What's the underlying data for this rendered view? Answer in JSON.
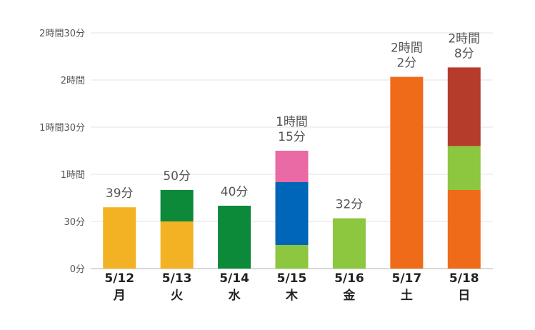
{
  "chart_data": {
    "type": "bar",
    "stacked": true,
    "unit": "minutes",
    "ylim": [
      0,
      150
    ],
    "y_ticks": [
      {
        "value": 0,
        "label": "0分"
      },
      {
        "value": 30,
        "label": "30分"
      },
      {
        "value": 60,
        "label": "1時間"
      },
      {
        "value": 90,
        "label": "1時間30分"
      },
      {
        "value": 120,
        "label": "2時間"
      },
      {
        "value": 150,
        "label": "2時間30分"
      }
    ],
    "categories": [
      {
        "date": "5/12",
        "day": "月",
        "total_label": [
          "39分"
        ],
        "segments": [
          {
            "value": 39,
            "color": "#f3b223"
          }
        ]
      },
      {
        "date": "5/13",
        "day": "火",
        "total_label": [
          "50分"
        ],
        "segments": [
          {
            "value": 30,
            "color": "#f3b223"
          },
          {
            "value": 20,
            "color": "#0c8a3a"
          }
        ]
      },
      {
        "date": "5/14",
        "day": "水",
        "total_label": [
          "40分"
        ],
        "segments": [
          {
            "value": 40,
            "color": "#0c8a3a"
          }
        ]
      },
      {
        "date": "5/15",
        "day": "木",
        "total_label": [
          "1時間",
          "15分"
        ],
        "segments": [
          {
            "value": 15,
            "color": "#8dc63f"
          },
          {
            "value": 40,
            "color": "#0066b8"
          },
          {
            "value": 20,
            "color": "#ea6aa5"
          }
        ]
      },
      {
        "date": "5/16",
        "day": "金",
        "total_label": [
          "32分"
        ],
        "segments": [
          {
            "value": 32,
            "color": "#8dc63f"
          }
        ]
      },
      {
        "date": "5/17",
        "day": "土",
        "total_label": [
          "2時間",
          "2分"
        ],
        "segments": [
          {
            "value": 122,
            "color": "#ef6b1a"
          }
        ]
      },
      {
        "date": "5/18",
        "day": "日",
        "total_label": [
          "2時間",
          "8分"
        ],
        "segments": [
          {
            "value": 50,
            "color": "#ef6b1a"
          },
          {
            "value": 28,
            "color": "#8dc63f"
          },
          {
            "value": 50,
            "color": "#b53b2a"
          }
        ]
      }
    ],
    "grid": true,
    "legend": "none"
  }
}
